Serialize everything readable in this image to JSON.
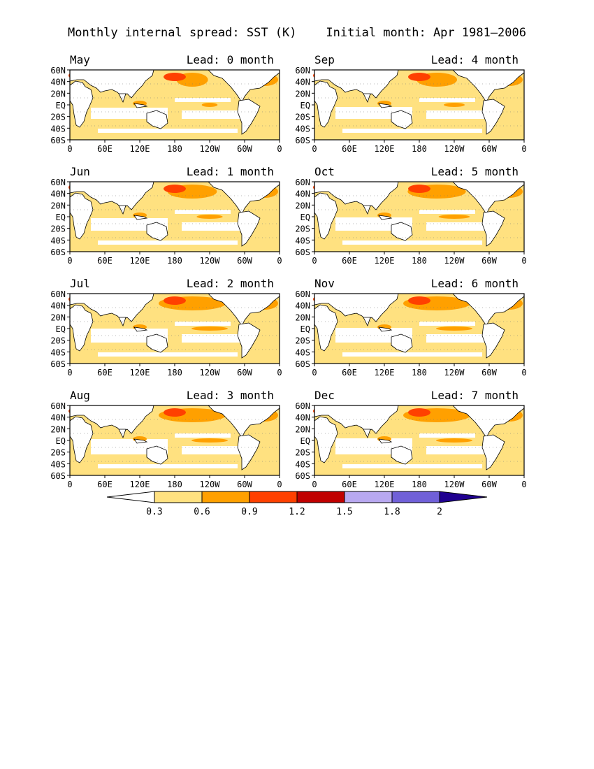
{
  "header": {
    "left": "Monthly internal spread: SST (K)",
    "right": "Initial month: Apr 1981—2006"
  },
  "lat_labels": [
    "60N",
    "40N",
    "20N",
    "EQ",
    "20S",
    "40S",
    "60S"
  ],
  "lon_labels": [
    "0",
    "60E",
    "120E",
    "180",
    "120W",
    "60W",
    "0"
  ],
  "panels": [
    {
      "month": "May",
      "lead": "Lead: 0 month"
    },
    {
      "month": "Sep",
      "lead": "Lead: 4 month"
    },
    {
      "month": "Jun",
      "lead": "Lead: 1 month"
    },
    {
      "month": "Oct",
      "lead": "Lead: 5 month"
    },
    {
      "month": "Jul",
      "lead": "Lead: 2 month"
    },
    {
      "month": "Nov",
      "lead": "Lead: 6 month"
    },
    {
      "month": "Aug",
      "lead": "Lead: 3 month"
    },
    {
      "month": "Dec",
      "lead": "Lead: 7 month"
    }
  ],
  "colorbar": {
    "labels": [
      "0.3",
      "0.6",
      "0.9",
      "1.2",
      "1.5",
      "1.8",
      "2"
    ],
    "colors": [
      "#ffffff",
      "#ffe180",
      "#ffa000",
      "#ff4000",
      "#c00000",
      "#b8a8f0",
      "#7060d8",
      "#200090"
    ]
  }
}
